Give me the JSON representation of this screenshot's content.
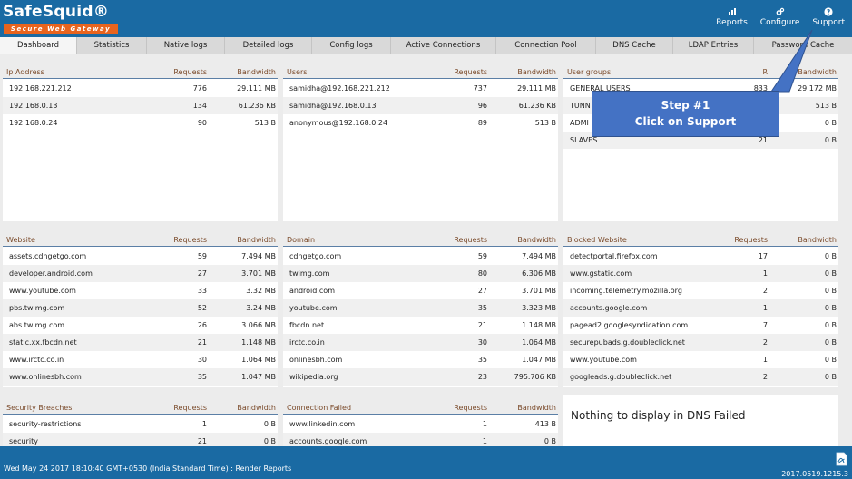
{
  "brand": {
    "title": "SafeSquid®",
    "subtitle": "Secure Web Gateway"
  },
  "header_actions": [
    {
      "label": "Reports",
      "icon": "chart-icon"
    },
    {
      "label": "Configure",
      "icon": "gears-icon"
    },
    {
      "label": "Support",
      "icon": "question-icon"
    }
  ],
  "tabs": [
    {
      "label": "Dashboard",
      "active": true
    },
    {
      "label": "Statistics"
    },
    {
      "label": "Native logs"
    },
    {
      "label": "Detailed logs"
    },
    {
      "label": "Config logs"
    },
    {
      "label": "Active Connections"
    },
    {
      "label": "Connection Pool"
    },
    {
      "label": "DNS Cache"
    },
    {
      "label": "LDAP Entries"
    },
    {
      "label": "Password Cache"
    }
  ],
  "panels": {
    "ip": {
      "title": "Ip Address",
      "req": "Requests",
      "bw": "Bandwidth",
      "rows": [
        [
          "192.168.221.212",
          "776",
          "29.111 MB"
        ],
        [
          "192.168.0.13",
          "134",
          "61.236 KB"
        ],
        [
          "192.168.0.24",
          "90",
          "513 B"
        ]
      ]
    },
    "users": {
      "title": "Users",
      "req": "Requests",
      "bw": "Bandwidth",
      "rows": [
        [
          "samidha@192.168.221.212",
          "737",
          "29.111 MB"
        ],
        [
          "samidha@192.168.0.13",
          "96",
          "61.236 KB"
        ],
        [
          "anonymous@192.168.0.24",
          "89",
          "513 B"
        ]
      ]
    },
    "groups": {
      "title": "User groups",
      "req": "R",
      "bw": "Bandwidth",
      "rows": [
        [
          "GENERAL USERS",
          "833",
          "29.172 MB"
        ],
        [
          "TUNN",
          "",
          "513 B"
        ],
        [
          "ADMI",
          "",
          "0 B"
        ],
        [
          "SLAVES",
          "21",
          "0 B"
        ]
      ]
    },
    "website": {
      "title": "Website",
      "req": "Requests",
      "bw": "Bandwidth",
      "rows": [
        [
          "assets.cdngetgo.com",
          "59",
          "7.494 MB"
        ],
        [
          "developer.android.com",
          "27",
          "3.701 MB"
        ],
        [
          "www.youtube.com",
          "33",
          "3.32 MB"
        ],
        [
          "pbs.twimg.com",
          "52",
          "3.24 MB"
        ],
        [
          "abs.twimg.com",
          "26",
          "3.066 MB"
        ],
        [
          "static.xx.fbcdn.net",
          "21",
          "1.148 MB"
        ],
        [
          "www.irctc.co.in",
          "30",
          "1.064 MB"
        ],
        [
          "www.onlinesbh.com",
          "35",
          "1.047 MB"
        ]
      ]
    },
    "domain": {
      "title": "Domain",
      "req": "Requests",
      "bw": "Bandwidth",
      "rows": [
        [
          "cdngetgo.com",
          "59",
          "7.494 MB"
        ],
        [
          "twimg.com",
          "80",
          "6.306 MB"
        ],
        [
          "android.com",
          "27",
          "3.701 MB"
        ],
        [
          "youtube.com",
          "35",
          "3.323 MB"
        ],
        [
          "fbcdn.net",
          "21",
          "1.148 MB"
        ],
        [
          "irctc.co.in",
          "30",
          "1.064 MB"
        ],
        [
          "onlinesbh.com",
          "35",
          "1.047 MB"
        ],
        [
          "wikipedia.org",
          "23",
          "795.706 KB"
        ]
      ]
    },
    "blocked": {
      "title": "Blocked Website",
      "req": "Requests",
      "bw": "Bandwidth",
      "rows": [
        [
          "detectportal.firefox.com",
          "17",
          "0 B"
        ],
        [
          "www.gstatic.com",
          "1",
          "0 B"
        ],
        [
          "incoming.telemetry.mozilla.org",
          "2",
          "0 B"
        ],
        [
          "accounts.google.com",
          "1",
          "0 B"
        ],
        [
          "pagead2.googlesyndication.com",
          "7",
          "0 B"
        ],
        [
          "securepubads.g.doubleclick.net",
          "2",
          "0 B"
        ],
        [
          "www.youtube.com",
          "1",
          "0 B"
        ],
        [
          "googleads.g.doubleclick.net",
          "2",
          "0 B"
        ]
      ]
    },
    "security": {
      "title": "Security Breaches",
      "req": "Requests",
      "bw": "Bandwidth",
      "rows": [
        [
          "security-restrictions",
          "1",
          "0 B"
        ],
        [
          "security",
          "21",
          "0 B"
        ]
      ]
    },
    "connfail": {
      "title": "Connection Failed",
      "req": "Requests",
      "bw": "Bandwidth",
      "rows": [
        [
          "www.linkedin.com",
          "1",
          "413 B"
        ],
        [
          "accounts.google.com",
          "1",
          "0 B"
        ]
      ]
    }
  },
  "dns_failed_message": "Nothing to display in DNS Failed",
  "callout": {
    "line1": "Step #1",
    "line2": "Click on Support"
  },
  "footer": {
    "status": "Wed May 24 2017 18:10:40 GMT+0530 (India Standard Time) : Render Reports",
    "version": "2017.0519.1215.3"
  },
  "colors": {
    "brand_blue": "#1a6aa3",
    "brand_orange": "#e8641e",
    "callout_blue": "#4472c4"
  }
}
